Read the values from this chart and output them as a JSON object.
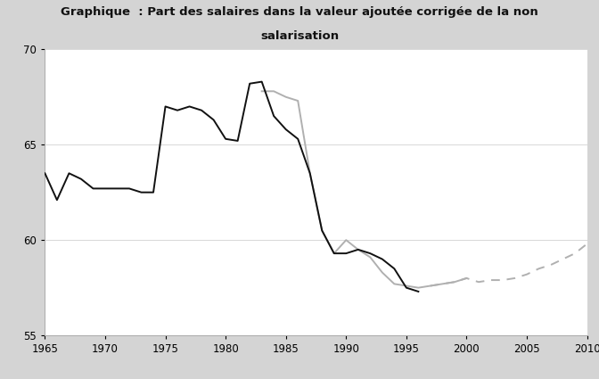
{
  "title_line1": "Graphique  : Part des salaires dans la valeur ajoutée corrigée de la non",
  "title_line2": "salarisation",
  "title_bg": "#d4d4d4",
  "plot_bg": "#ffffff",
  "ylim": [
    55,
    70
  ],
  "xlim": [
    1965,
    2010
  ],
  "yticks": [
    55,
    60,
    65,
    70
  ],
  "xticks": [
    1965,
    1970,
    1975,
    1980,
    1985,
    1990,
    1995,
    2000,
    2005,
    2010
  ],
  "black_line": {
    "x": [
      1965,
      1966,
      1967,
      1968,
      1969,
      1970,
      1971,
      1972,
      1973,
      1974,
      1975,
      1976,
      1977,
      1978,
      1979,
      1980,
      1981,
      1982,
      1983,
      1984,
      1985,
      1986,
      1987,
      1988,
      1989,
      1990,
      1991,
      1992,
      1993,
      1994,
      1995,
      1996
    ],
    "y": [
      63.5,
      62.1,
      63.5,
      63.2,
      62.7,
      62.7,
      62.7,
      62.7,
      62.5,
      62.5,
      67.0,
      66.8,
      67.0,
      66.8,
      66.3,
      65.3,
      65.2,
      68.2,
      68.3,
      66.5,
      65.8,
      65.3,
      63.5,
      60.5,
      59.3,
      59.3,
      59.5,
      59.3,
      59.0,
      58.5,
      57.5,
      57.3
    ]
  },
  "gray_line": {
    "x": [
      1983,
      1984,
      1985,
      1986,
      1987,
      1988,
      1989,
      1990,
      1991,
      1992,
      1993,
      1994,
      1995,
      1996,
      1997,
      1998,
      1999,
      2000
    ],
    "y": [
      67.8,
      67.8,
      67.5,
      67.3,
      63.5,
      60.5,
      59.3,
      60.0,
      59.5,
      59.1,
      58.3,
      57.7,
      57.6,
      57.5,
      57.6,
      57.7,
      57.8,
      58.0
    ]
  },
  "dashed_line": {
    "x": [
      1997,
      1998,
      1999,
      2000,
      2001,
      2002,
      2003,
      2004,
      2005,
      2006,
      2007,
      2008,
      2009,
      2010
    ],
    "y": [
      57.6,
      57.7,
      57.8,
      58.0,
      57.8,
      57.9,
      57.9,
      58.0,
      58.2,
      58.5,
      58.7,
      59.0,
      59.3,
      59.8
    ]
  },
  "black_color": "#111111",
  "gray_color": "#b0b0b0",
  "grid_color": "#d8d8d8",
  "spine_color": "#aaaaaa",
  "tick_label_size": 8.5,
  "title_fontsize": 9.5
}
